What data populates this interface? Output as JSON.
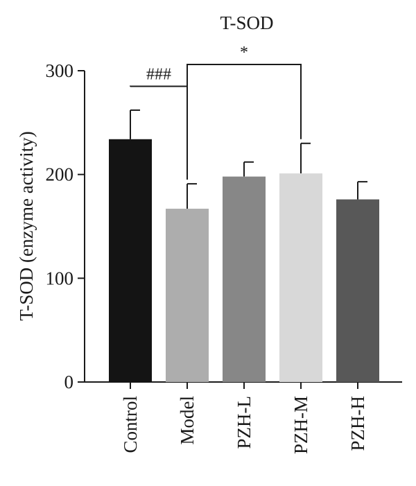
{
  "chart_data": {
    "type": "bar",
    "title": "T-SOD",
    "xlabel": "",
    "ylabel": "T-SOD (enzyme activity)",
    "ylim": [
      0,
      300
    ],
    "yticks": [
      0,
      100,
      200,
      300
    ],
    "grid": false,
    "categories": [
      "Control",
      "Model",
      "PZH-L",
      "PZH-M",
      "PZH-H"
    ],
    "values": [
      234,
      167,
      198,
      201,
      176
    ],
    "errors": [
      28,
      24,
      14,
      29,
      17
    ],
    "colors": [
      "#141414",
      "#adadad",
      "#878787",
      "#d8d8d8",
      "#585858"
    ],
    "significance": [
      {
        "from": 0,
        "to": 1,
        "label": "###",
        "level": 285
      },
      {
        "from": 1,
        "to": 3,
        "label": "*",
        "level": 306
      }
    ]
  }
}
